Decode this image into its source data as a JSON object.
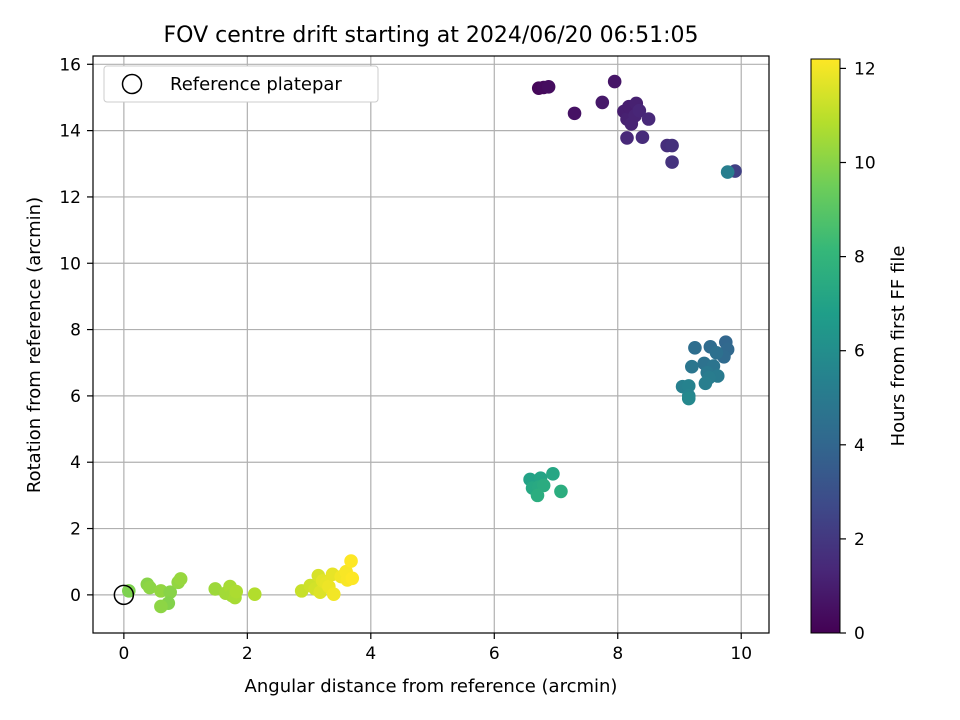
{
  "chart_data": {
    "type": "scatter",
    "title": "FOV centre drift starting at 2024/06/20 06:51:05",
    "xlabel": "Angular distance from reference (arcmin)",
    "ylabel": "Rotation from reference (arcmin)",
    "xlim": [
      -0.5,
      10.45
    ],
    "ylim": [
      -1.15,
      16.25
    ],
    "xticks": [
      0,
      2,
      4,
      6,
      8,
      10
    ],
    "yticks": [
      0,
      2,
      4,
      6,
      8,
      10,
      12,
      14,
      16
    ],
    "grid": true,
    "legend": {
      "position": "top-left",
      "entries": [
        {
          "label": "Reference platepar",
          "marker": "open-circle",
          "color": "#000000"
        }
      ]
    },
    "reference_point": {
      "x": 0,
      "y": 0
    },
    "colorbar": {
      "label": "Hours from first FF file",
      "colormap": "viridis",
      "range": [
        0,
        12.2
      ],
      "ticks": [
        0,
        2,
        4,
        6,
        8,
        10,
        12
      ]
    },
    "series": [
      {
        "color_by": "hours",
        "points": [
          {
            "x": 6.72,
            "y": 15.28,
            "h": 0.2
          },
          {
            "x": 6.8,
            "y": 15.3,
            "h": 0.3
          },
          {
            "x": 6.88,
            "y": 15.32,
            "h": 0.4
          },
          {
            "x": 7.3,
            "y": 14.52,
            "h": 0.6
          },
          {
            "x": 7.75,
            "y": 14.85,
            "h": 0.8
          },
          {
            "x": 7.95,
            "y": 15.48,
            "h": 0.7
          },
          {
            "x": 8.1,
            "y": 14.58,
            "h": 1.0
          },
          {
            "x": 8.15,
            "y": 14.35,
            "h": 1.1
          },
          {
            "x": 8.18,
            "y": 14.72,
            "h": 1.0
          },
          {
            "x": 8.22,
            "y": 14.2,
            "h": 1.2
          },
          {
            "x": 8.28,
            "y": 14.45,
            "h": 1.2
          },
          {
            "x": 8.3,
            "y": 14.82,
            "h": 1.1
          },
          {
            "x": 8.35,
            "y": 14.6,
            "h": 1.3
          },
          {
            "x": 8.15,
            "y": 13.78,
            "h": 1.4
          },
          {
            "x": 8.4,
            "y": 13.8,
            "h": 1.5
          },
          {
            "x": 8.5,
            "y": 14.35,
            "h": 1.4
          },
          {
            "x": 8.8,
            "y": 13.55,
            "h": 1.6
          },
          {
            "x": 8.88,
            "y": 13.55,
            "h": 1.7
          },
          {
            "x": 8.88,
            "y": 13.05,
            "h": 1.8
          },
          {
            "x": 9.9,
            "y": 12.78,
            "h": 2.3
          },
          {
            "x": 9.78,
            "y": 12.75,
            "h": 5.2
          },
          {
            "x": 9.75,
            "y": 7.62,
            "h": 4.0
          },
          {
            "x": 9.78,
            "y": 7.4,
            "h": 4.1
          },
          {
            "x": 9.72,
            "y": 7.18,
            "h": 4.2
          },
          {
            "x": 9.5,
            "y": 7.48,
            "h": 4.3
          },
          {
            "x": 9.25,
            "y": 7.45,
            "h": 4.4
          },
          {
            "x": 9.6,
            "y": 7.3,
            "h": 4.5
          },
          {
            "x": 9.4,
            "y": 6.98,
            "h": 4.6
          },
          {
            "x": 9.55,
            "y": 6.9,
            "h": 4.7
          },
          {
            "x": 9.2,
            "y": 6.88,
            "h": 4.8
          },
          {
            "x": 9.45,
            "y": 6.7,
            "h": 4.9
          },
          {
            "x": 9.62,
            "y": 6.6,
            "h": 5.0
          },
          {
            "x": 9.48,
            "y": 6.55,
            "h": 5.1
          },
          {
            "x": 9.42,
            "y": 6.38,
            "h": 5.2
          },
          {
            "x": 9.05,
            "y": 6.28,
            "h": 5.3
          },
          {
            "x": 9.15,
            "y": 6.3,
            "h": 5.4
          },
          {
            "x": 9.15,
            "y": 6.0,
            "h": 5.5
          },
          {
            "x": 9.15,
            "y": 5.92,
            "h": 5.7
          },
          {
            "x": 6.58,
            "y": 3.48,
            "h": 7.0
          },
          {
            "x": 6.75,
            "y": 3.52,
            "h": 7.1
          },
          {
            "x": 6.95,
            "y": 3.65,
            "h": 7.2
          },
          {
            "x": 6.62,
            "y": 3.22,
            "h": 7.3
          },
          {
            "x": 6.72,
            "y": 3.25,
            "h": 7.4
          },
          {
            "x": 6.8,
            "y": 3.3,
            "h": 7.5
          },
          {
            "x": 6.7,
            "y": 3.0,
            "h": 7.6
          },
          {
            "x": 7.08,
            "y": 3.12,
            "h": 7.6
          },
          {
            "x": 0.08,
            "y": 0.12,
            "h": 9.8
          },
          {
            "x": 0.38,
            "y": 0.32,
            "h": 10.0
          },
          {
            "x": 0.42,
            "y": 0.22,
            "h": 10.1
          },
          {
            "x": 0.6,
            "y": 0.12,
            "h": 10.2
          },
          {
            "x": 0.75,
            "y": 0.08,
            "h": 10.0
          },
          {
            "x": 0.72,
            "y": -0.25,
            "h": 9.9
          },
          {
            "x": 0.6,
            "y": -0.35,
            "h": 10.1
          },
          {
            "x": 0.88,
            "y": 0.38,
            "h": 10.2
          },
          {
            "x": 0.92,
            "y": 0.48,
            "h": 10.3
          },
          {
            "x": 1.48,
            "y": 0.18,
            "h": 10.4
          },
          {
            "x": 1.65,
            "y": 0.05,
            "h": 10.5
          },
          {
            "x": 1.72,
            "y": 0.25,
            "h": 10.6
          },
          {
            "x": 1.75,
            "y": -0.02,
            "h": 10.5
          },
          {
            "x": 1.8,
            "y": -0.08,
            "h": 10.6
          },
          {
            "x": 1.82,
            "y": 0.1,
            "h": 10.7
          },
          {
            "x": 2.12,
            "y": 0.02,
            "h": 10.8
          },
          {
            "x": 2.88,
            "y": 0.12,
            "h": 11.2
          },
          {
            "x": 3.02,
            "y": 0.28,
            "h": 11.3
          },
          {
            "x": 3.1,
            "y": 0.18,
            "h": 11.4
          },
          {
            "x": 3.15,
            "y": 0.58,
            "h": 11.5
          },
          {
            "x": 3.18,
            "y": 0.08,
            "h": 11.6
          },
          {
            "x": 3.22,
            "y": 0.42,
            "h": 11.7
          },
          {
            "x": 3.28,
            "y": 0.35,
            "h": 11.8
          },
          {
            "x": 3.32,
            "y": 0.25,
            "h": 11.9
          },
          {
            "x": 3.38,
            "y": 0.62,
            "h": 11.8
          },
          {
            "x": 3.4,
            "y": 0.02,
            "h": 12.0
          },
          {
            "x": 3.52,
            "y": 0.55,
            "h": 12.0
          },
          {
            "x": 3.6,
            "y": 0.7,
            "h": 12.1
          },
          {
            "x": 3.62,
            "y": 0.45,
            "h": 12.1
          },
          {
            "x": 3.68,
            "y": 1.02,
            "h": 12.2
          },
          {
            "x": 3.7,
            "y": 0.5,
            "h": 12.2
          }
        ]
      }
    ]
  }
}
